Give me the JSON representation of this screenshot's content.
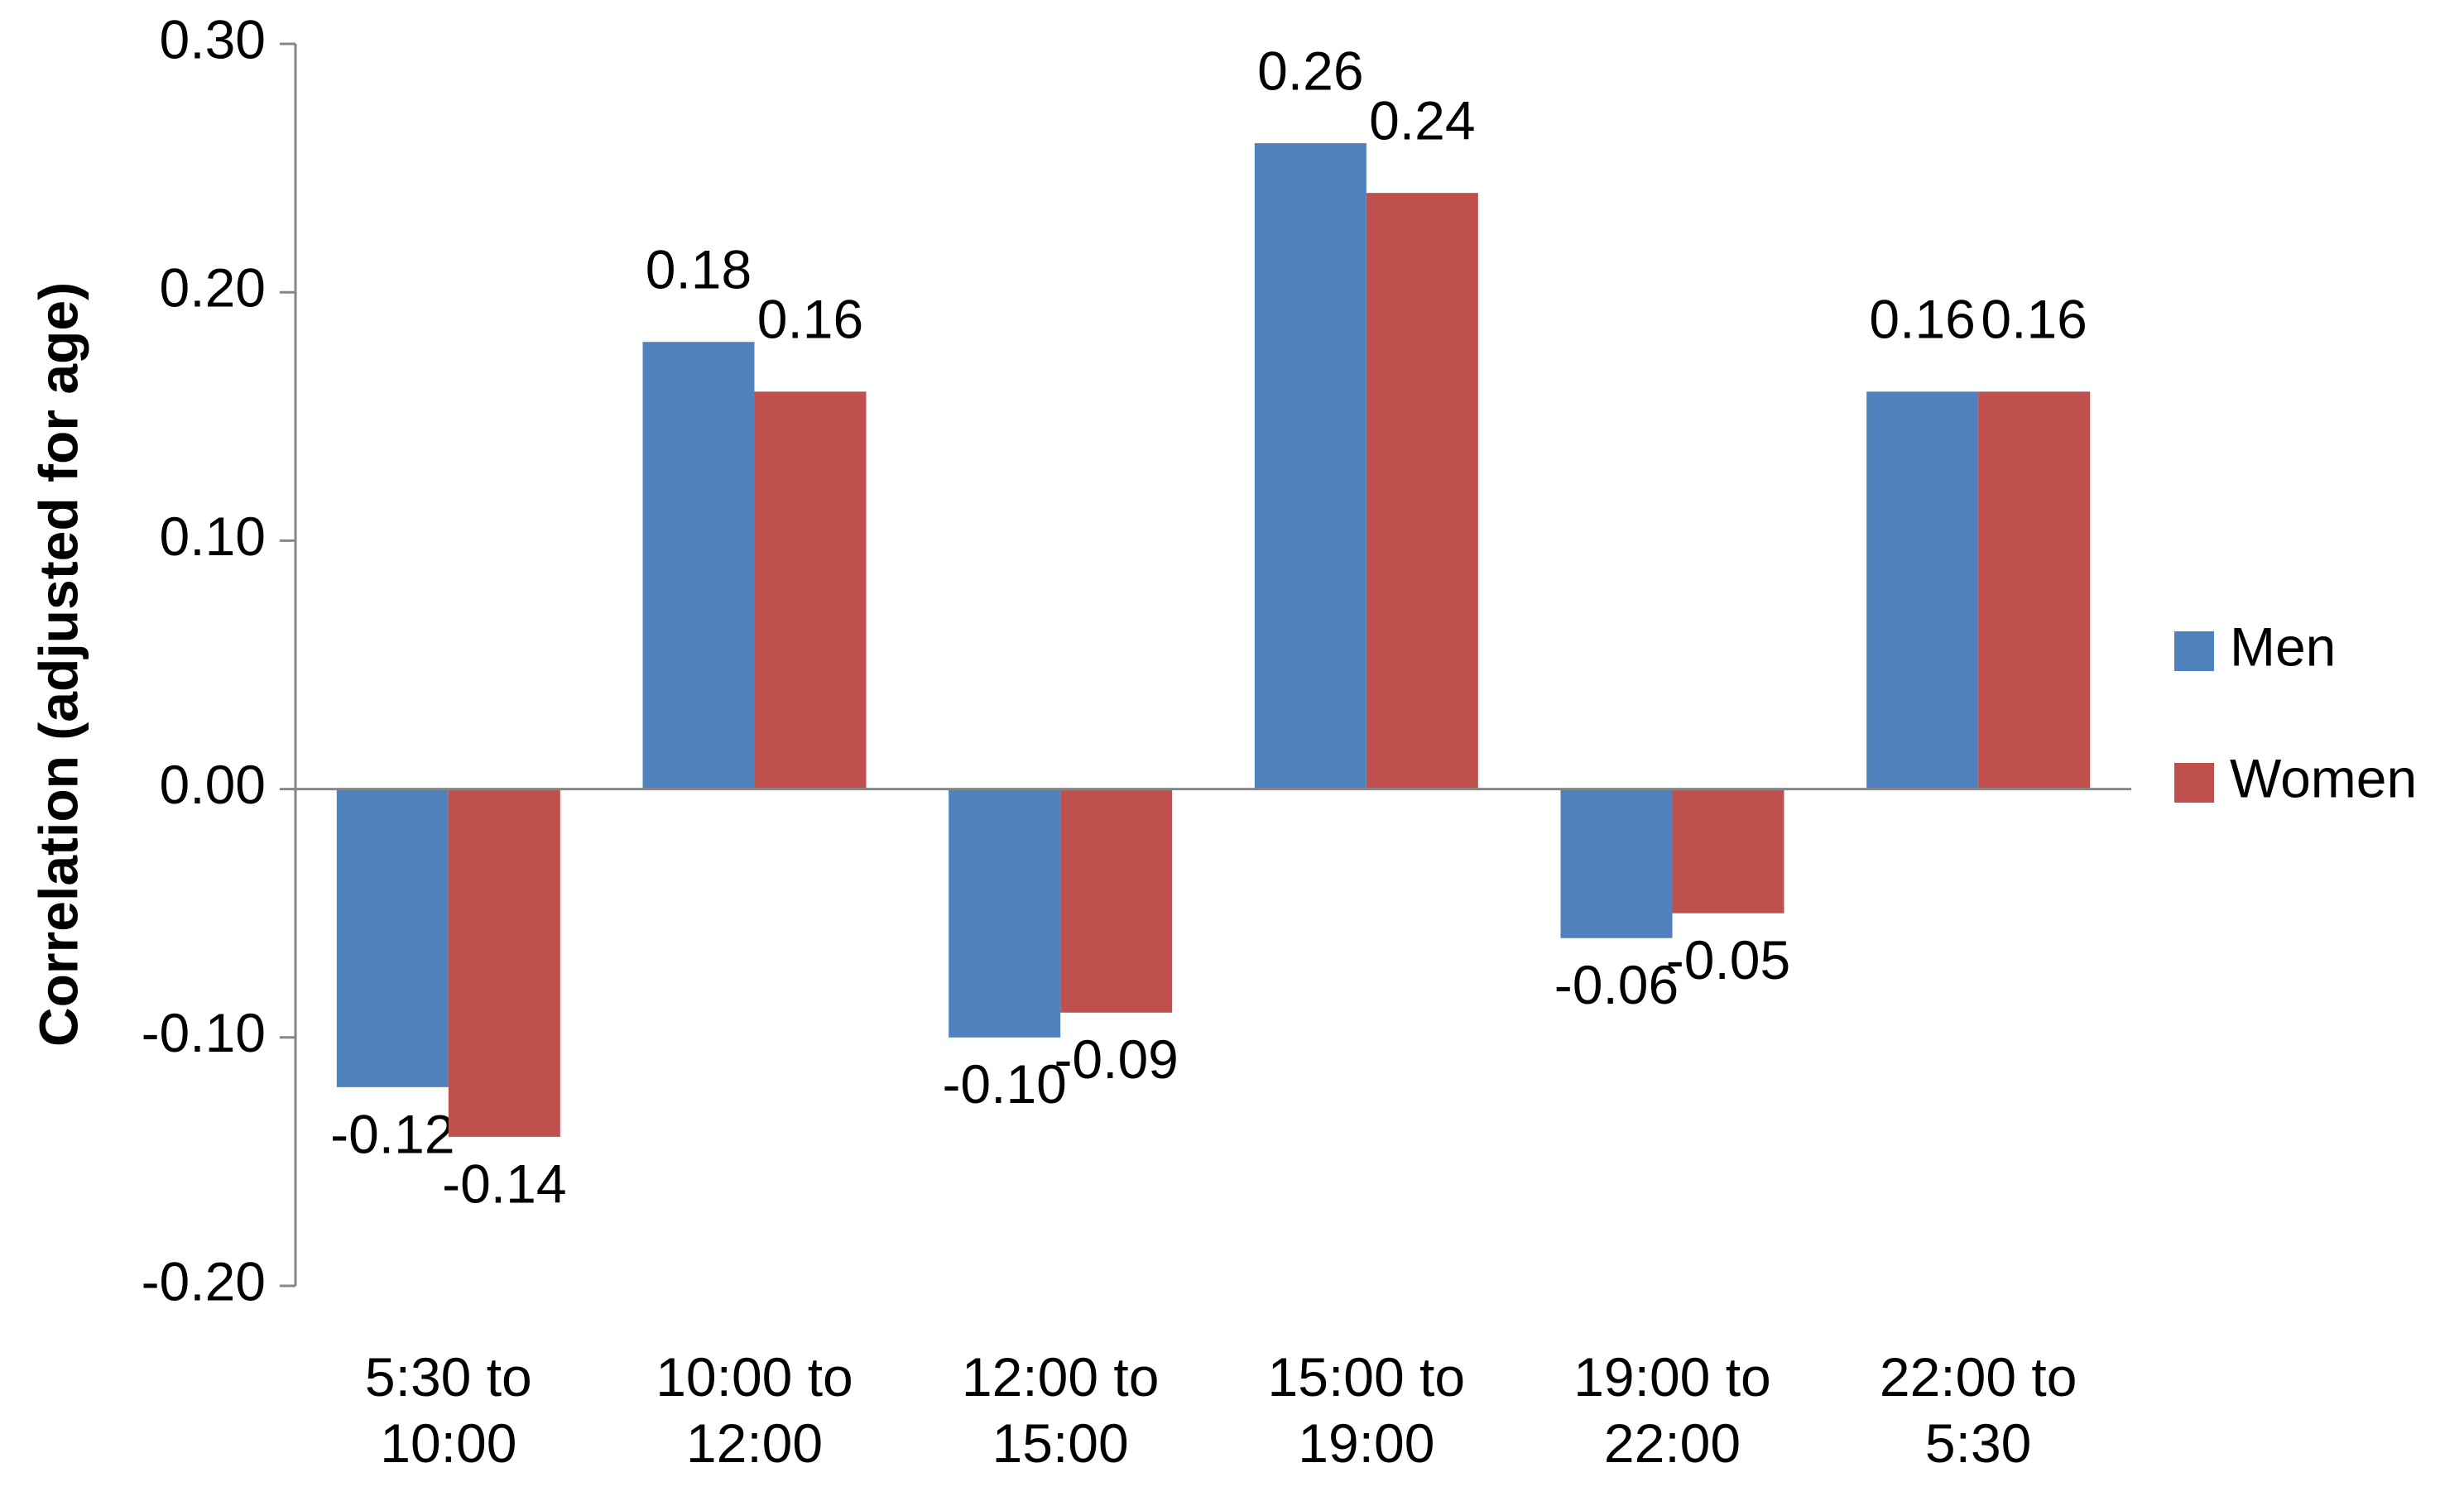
{
  "chart_data": {
    "type": "bar",
    "y_axis_label": "Correlation (adjusted for age)",
    "categories": [
      "5:30 to 10:00",
      "10:00 to 12:00",
      "12:00 to 15:00",
      "15:00 to 19:00",
      "19:00 to 22:00",
      "22:00 to 5:30"
    ],
    "series": [
      {
        "name": "Men",
        "color": "#4f81bd",
        "values": [
          -0.12,
          0.18,
          -0.1,
          0.26,
          -0.06,
          0.16
        ],
        "value_labels": [
          "-0.12",
          "0.18",
          "-0.10",
          "0.26",
          "-0.06",
          "0.16"
        ]
      },
      {
        "name": "Women",
        "color": "#c0504d",
        "values": [
          -0.14,
          0.16,
          -0.09,
          0.24,
          -0.05,
          0.16
        ],
        "value_labels": [
          "-0.14",
          "0.16",
          "-0.09",
          "0.24",
          "-0.05",
          "0.16"
        ]
      }
    ],
    "ylim": [
      -0.2,
      0.3
    ],
    "yticks": [
      {
        "value": -0.2,
        "label": "-0.20"
      },
      {
        "value": -0.1,
        "label": "-0.10"
      },
      {
        "value": 0,
        "label": "0.00"
      },
      {
        "value": 0.1,
        "label": "0.10"
      },
      {
        "value": 0.2,
        "label": "0.20"
      },
      {
        "value": 0.3,
        "label": "0.30"
      }
    ],
    "grid": false,
    "legend": "right"
  }
}
